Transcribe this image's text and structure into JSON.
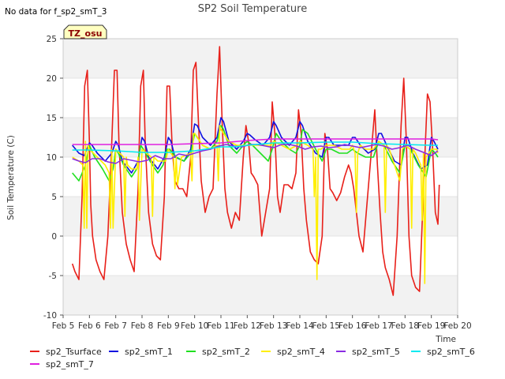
{
  "chart_data": {
    "type": "line",
    "title": "SP2 Soil Temperature",
    "note": "No data for f_sp2_smT_3",
    "site_label": "TZ_osu",
    "xlabel": "Time",
    "ylabel": "Soil Temperature (C)",
    "xlim": [
      "Feb 5",
      "Feb 20"
    ],
    "ylim": [
      -10,
      25
    ],
    "x_ticks": [
      "Feb 5",
      "Feb 6",
      "Feb 7",
      "Feb 8",
      "Feb 9",
      "Feb 10",
      "Feb 11",
      "Feb 12",
      "Feb 13",
      "Feb 14",
      "Feb 15",
      "Feb 16",
      "Feb 17",
      "Feb 18",
      "Feb 19",
      "Feb 20"
    ],
    "y_ticks": [
      -10,
      -5,
      0,
      5,
      10,
      15,
      20,
      25
    ],
    "grid": "horizontal bands",
    "legend_position": "bottom",
    "x_day_of_month_start": 5,
    "series": [
      {
        "name": "sp2_Tsurface",
        "color": "#e8201a",
        "x": [
          5.35,
          5.45,
          5.6,
          5.72,
          5.82,
          5.92,
          6.0,
          6.05,
          6.12,
          6.25,
          6.4,
          6.55,
          6.7,
          6.85,
          6.95,
          7.05,
          7.12,
          7.25,
          7.4,
          7.55,
          7.7,
          7.85,
          7.95,
          8.05,
          8.12,
          8.25,
          8.4,
          8.55,
          8.7,
          8.85,
          8.95,
          9.05,
          9.15,
          9.25,
          9.4,
          9.55,
          9.7,
          9.85,
          9.95,
          10.05,
          10.15,
          10.25,
          10.4,
          10.55,
          10.7,
          10.85,
          10.95,
          11.05,
          11.15,
          11.25,
          11.4,
          11.55,
          11.7,
          11.85,
          11.95,
          12.05,
          12.15,
          12.25,
          12.4,
          12.55,
          12.7,
          12.85,
          12.95,
          13.05,
          13.15,
          13.25,
          13.4,
          13.55,
          13.7,
          13.85,
          13.95,
          14.05,
          14.15,
          14.25,
          14.4,
          14.55,
          14.7,
          14.85,
          14.95,
          15.05,
          15.15,
          15.25,
          15.4,
          15.55,
          15.7,
          15.85,
          15.95,
          16.05,
          16.15,
          16.25,
          16.4,
          16.55,
          16.7,
          16.85,
          16.95,
          17.05,
          17.15,
          17.25,
          17.4,
          17.55,
          17.7,
          17.85,
          17.95,
          18.05,
          18.15,
          18.25,
          18.4,
          18.55,
          18.7,
          18.85,
          18.95,
          19.05,
          19.15,
          19.25,
          19.3
        ],
        "y": [
          -3.5,
          -4.5,
          -5.5,
          5.0,
          19.0,
          21.0,
          12.0,
          4.0,
          0.0,
          -3.0,
          -4.5,
          -5.5,
          0.0,
          12.0,
          21.0,
          21.0,
          12.0,
          3.0,
          -1.0,
          -3.0,
          -4.5,
          6.0,
          19.0,
          21.0,
          12.0,
          3.0,
          -1.0,
          -2.5,
          -3.0,
          5.0,
          19.0,
          19.0,
          11.0,
          7.0,
          6.0,
          6.0,
          5.0,
          10.0,
          21.0,
          22.0,
          14.0,
          7.0,
          3.0,
          5.0,
          6.0,
          18.0,
          24.0,
          14.0,
          6.0,
          3.0,
          1.0,
          3.0,
          2.0,
          10.0,
          14.0,
          12.0,
          8.0,
          7.5,
          6.5,
          0.0,
          3.0,
          6.0,
          17.0,
          13.0,
          5.0,
          3.0,
          6.5,
          6.5,
          6.0,
          8.0,
          16.0,
          13.0,
          6.0,
          2.0,
          -2.0,
          -3.0,
          -3.5,
          0.0,
          13.0,
          11.0,
          6.0,
          5.5,
          4.5,
          5.5,
          7.5,
          9.0,
          8.0,
          6.0,
          3.0,
          0.0,
          -2.0,
          4.0,
          10.0,
          16.0,
          9.0,
          3.0,
          -2.0,
          -4.0,
          -5.5,
          -7.5,
          0.0,
          14.0,
          20.0,
          12.0,
          0.0,
          -5.0,
          -6.5,
          -7.0,
          6.0,
          18.0,
          17.0,
          11.0,
          3.0,
          1.5,
          6.5
        ]
      },
      {
        "name": "sp2_smT_1",
        "color": "#1010e0",
        "x": [
          5.35,
          5.6,
          5.8,
          6.0,
          6.1,
          6.3,
          6.6,
          6.85,
          7.0,
          7.1,
          7.25,
          7.6,
          7.85,
          8.0,
          8.1,
          8.25,
          8.6,
          8.85,
          9.0,
          9.1,
          9.25,
          9.6,
          9.85,
          10.0,
          10.1,
          10.3,
          10.6,
          10.85,
          11.0,
          11.1,
          11.3,
          11.6,
          11.85,
          12.0,
          12.1,
          12.3,
          12.6,
          12.85,
          13.0,
          13.1,
          13.3,
          13.6,
          13.85,
          14.0,
          14.1,
          14.3,
          14.6,
          14.85,
          15.0,
          15.1,
          15.3,
          15.6,
          15.85,
          16.0,
          16.1,
          16.3,
          16.6,
          16.85,
          17.0,
          17.1,
          17.3,
          17.6,
          17.85,
          18.0,
          18.1,
          18.3,
          18.6,
          18.85,
          19.0,
          19.1,
          19.25
        ],
        "y": [
          11.5,
          10.5,
          10.2,
          11.8,
          11.5,
          10.5,
          9.5,
          10.5,
          12.0,
          11.5,
          9.5,
          8.0,
          9.5,
          12.5,
          12.0,
          10.0,
          8.5,
          10.0,
          12.5,
          12.0,
          10.0,
          9.5,
          11.0,
          14.2,
          14.0,
          12.5,
          11.5,
          12.5,
          15.0,
          14.5,
          12.0,
          11.0,
          12.0,
          13.0,
          12.8,
          12.2,
          11.5,
          12.5,
          14.5,
          14.0,
          12.5,
          11.5,
          12.5,
          14.5,
          14.0,
          12.0,
          10.5,
          10.0,
          12.5,
          12.5,
          11.5,
          11.5,
          11.5,
          12.5,
          12.5,
          11.5,
          10.5,
          11.0,
          13.0,
          13.0,
          11.5,
          9.5,
          9.0,
          12.5,
          12.5,
          10.5,
          8.5,
          9.0,
          12.5,
          12.0,
          11.0
        ]
      },
      {
        "name": "sp2_smT_2",
        "color": "#20e020",
        "x": [
          5.35,
          5.6,
          5.85,
          6.0,
          6.2,
          6.5,
          6.75,
          6.9,
          7.0,
          7.1,
          7.3,
          7.6,
          7.8,
          7.95,
          8.05,
          8.3,
          8.6,
          8.8,
          8.95,
          9.05,
          9.3,
          9.6,
          9.85,
          10.0,
          10.1,
          10.3,
          10.6,
          10.85,
          11.0,
          11.1,
          11.3,
          11.6,
          11.85,
          12.0,
          12.2,
          12.5,
          12.8,
          12.95,
          13.1,
          13.3,
          13.6,
          13.85,
          14.0,
          14.1,
          14.3,
          14.6,
          14.85,
          15.0,
          15.2,
          15.5,
          15.8,
          16.0,
          16.2,
          16.5,
          16.8,
          17.0,
          17.2,
          17.5,
          17.8,
          18.0,
          18.2,
          18.5,
          18.8,
          19.0,
          19.15,
          19.25
        ],
        "y": [
          8.0,
          7.0,
          9.0,
          11.5,
          10.0,
          8.5,
          7.0,
          8.5,
          11.0,
          10.5,
          9.0,
          7.5,
          8.5,
          11.5,
          11.0,
          9.5,
          8.0,
          9.0,
          11.0,
          11.0,
          10.0,
          9.5,
          10.5,
          13.0,
          12.5,
          11.5,
          11.0,
          12.0,
          14.0,
          13.5,
          11.5,
          10.5,
          11.5,
          12.0,
          11.5,
          10.5,
          9.5,
          11.0,
          13.0,
          12.0,
          11.0,
          10.5,
          11.5,
          13.5,
          13.0,
          11.0,
          9.5,
          11.0,
          11.0,
          10.5,
          10.5,
          11.0,
          10.5,
          10.0,
          10.0,
          12.0,
          11.5,
          9.5,
          8.0,
          11.5,
          11.0,
          9.0,
          7.5,
          11.0,
          10.5,
          10.0
        ]
      },
      {
        "name": "sp2_smT_4",
        "color": "#ffee00",
        "x": [
          5.35,
          5.6,
          5.75,
          5.8,
          5.85,
          5.9,
          5.95,
          6.0,
          6.3,
          6.6,
          6.75,
          6.8,
          6.85,
          6.9,
          7.0,
          7.3,
          7.35,
          7.4,
          7.45,
          7.6,
          7.8,
          7.85,
          7.9,
          8.0,
          8.35,
          8.4,
          8.45,
          8.6,
          8.9,
          9.0,
          9.2,
          9.25,
          9.3,
          9.35,
          9.5,
          9.85,
          9.9,
          9.95,
          10.0,
          10.3,
          10.6,
          10.85,
          10.9,
          10.95,
          11.0,
          11.3,
          11.6,
          11.9,
          12.3,
          12.6,
          12.9,
          13.0,
          13.3,
          13.6,
          13.9,
          14.0,
          14.3,
          14.5,
          14.55,
          14.6,
          14.65,
          14.7,
          14.8,
          15.0,
          15.3,
          15.6,
          15.9,
          16.0,
          16.1,
          16.15,
          16.2,
          16.3,
          16.5,
          16.8,
          17.0,
          17.2,
          17.25,
          17.3,
          17.4,
          17.6,
          17.7,
          17.8,
          17.9,
          18.0,
          18.2,
          18.25,
          18.3,
          18.4,
          18.6,
          18.65,
          18.7,
          18.75,
          18.8,
          19.0,
          19.2,
          19.25
        ],
        "y": [
          10.0,
          9.5,
          9.0,
          1.0,
          12.0,
          1.0,
          11.5,
          11.0,
          10.0,
          9.0,
          8.0,
          1.0,
          11.0,
          1.0,
          11.0,
          10.0,
          2.5,
          10.0,
          9.0,
          8.5,
          8.5,
          10.0,
          2.0,
          11.0,
          10.0,
          2.5,
          10.0,
          9.5,
          9.5,
          11.0,
          10.0,
          6.0,
          10.0,
          6.5,
          10.0,
          10.5,
          7.0,
          13.0,
          13.0,
          11.5,
          11.0,
          11.5,
          7.0,
          14.0,
          13.5,
          12.0,
          11.5,
          11.5,
          11.5,
          11.5,
          11.5,
          12.0,
          11.5,
          11.0,
          11.5,
          12.0,
          11.5,
          11.0,
          5.0,
          10.0,
          -5.5,
          11.0,
          11.0,
          11.5,
          11.5,
          11.0,
          11.0,
          11.5,
          10.5,
          3.0,
          10.5,
          11.5,
          11.0,
          11.0,
          12.0,
          11.5,
          3.0,
          11.5,
          11.0,
          9.0,
          8.0,
          7.0,
          11.0,
          11.5,
          11.0,
          1.0,
          11.0,
          10.5,
          9.0,
          2.0,
          10.5,
          -6.0,
          10.0,
          11.0,
          11.0,
          10.5
        ]
      },
      {
        "name": "sp2_smT_5",
        "color": "#8a2be2",
        "x": [
          5.35,
          5.6,
          5.85,
          6.1,
          6.4,
          6.7,
          7.0,
          7.3,
          7.6,
          7.9,
          8.2,
          8.5,
          8.8,
          9.1,
          9.4,
          9.7,
          10.0,
          10.3,
          10.6,
          10.9,
          11.2,
          11.5,
          11.8,
          12.1,
          12.4,
          12.7,
          13.0,
          13.3,
          13.6,
          13.9,
          14.2,
          14.5,
          14.8,
          15.1,
          15.4,
          15.7,
          16.0,
          16.3,
          16.6,
          16.9,
          17.2,
          17.5,
          17.8,
          18.1,
          18.4,
          18.7,
          19.0,
          19.25
        ],
        "y": [
          9.8,
          9.5,
          9.3,
          9.8,
          9.8,
          9.4,
          9.2,
          9.8,
          9.6,
          9.4,
          9.6,
          10.2,
          9.8,
          9.8,
          10.4,
          10.2,
          10.5,
          10.8,
          11.0,
          11.4,
          11.6,
          11.4,
          11.3,
          11.6,
          11.6,
          11.4,
          11.2,
          11.6,
          11.6,
          11.4,
          11.0,
          11.3,
          11.4,
          11.2,
          11.3,
          11.6,
          11.4,
          11.2,
          11.4,
          11.6,
          11.4,
          11.0,
          11.2,
          11.5,
          11.0,
          10.6,
          10.2,
          10.8
        ]
      },
      {
        "name": "sp2_smT_6",
        "color": "#00eaf0",
        "x": [
          5.35,
          6.0,
          7.0,
          8.0,
          9.0,
          10.0,
          11.0,
          11.5,
          12.0,
          13.0,
          14.0,
          15.0,
          16.0,
          17.0,
          18.0,
          19.0,
          19.25
        ],
        "y": [
          10.9,
          10.9,
          10.8,
          10.6,
          10.6,
          10.8,
          11.3,
          11.3,
          11.5,
          11.8,
          11.8,
          11.9,
          11.9,
          11.7,
          11.6,
          11.5,
          11.5
        ]
      },
      {
        "name": "sp2_smT_7",
        "color": "#e020e0",
        "x": [
          5.35,
          6.0,
          7.0,
          8.0,
          9.0,
          10.0,
          11.0,
          12.0,
          13.0,
          14.0,
          15.0,
          16.0,
          17.0,
          18.0,
          19.0,
          19.25
        ],
        "y": [
          11.6,
          11.6,
          11.6,
          11.6,
          11.6,
          11.7,
          11.8,
          12.1,
          12.3,
          12.3,
          12.3,
          12.3,
          12.3,
          12.3,
          12.3,
          12.2
        ]
      }
    ]
  }
}
